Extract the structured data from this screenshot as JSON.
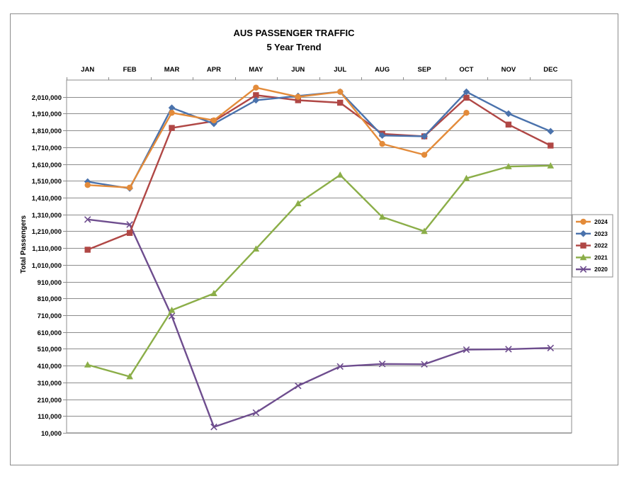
{
  "chart_data": {
    "type": "line",
    "title": "AUS PASSENGER TRAFFIC",
    "subtitle": "5 Year Trend",
    "xlabel": "",
    "ylabel": "Total Passengers",
    "x_axis_position": "top",
    "categories": [
      "JAN",
      "FEB",
      "MAR",
      "APR",
      "MAY",
      "JUN",
      "JUL",
      "AUG",
      "SEP",
      "OCT",
      "NOV",
      "DEC"
    ],
    "y_ticks": [
      "2,010,000",
      "1,910,000",
      "1,810,000",
      "1,710,000",
      "1,610,000",
      "1,510,000",
      "1,410,000",
      "1,310,000",
      "1,210,000",
      "1,110,000",
      "1,010,000",
      "910,000",
      "810,000",
      "710,000",
      "610,000",
      "510,000",
      "410,000",
      "310,000",
      "210,000",
      "110,000",
      "10,000"
    ],
    "ylim": [
      10000,
      2110000
    ],
    "grid": true,
    "legend_position": "right",
    "series": [
      {
        "name": "2024",
        "color": "#E38B3A",
        "marker": "circle",
        "values": [
          1485000,
          1470000,
          1915000,
          1870000,
          2065000,
          2010000,
          2040000,
          1730000,
          1665000,
          1915000,
          null,
          null
        ]
      },
      {
        "name": "2023",
        "color": "#4A72AC",
        "marker": "diamond",
        "values": [
          1505000,
          1465000,
          1945000,
          1850000,
          1990000,
          2015000,
          2040000,
          1780000,
          1775000,
          2040000,
          1910000,
          1805000
        ]
      },
      {
        "name": "2022",
        "color": "#B04745",
        "marker": "square",
        "values": [
          1100000,
          1200000,
          1825000,
          1865000,
          2020000,
          1990000,
          1975000,
          1790000,
          1775000,
          2005000,
          1845000,
          1720000
        ]
      },
      {
        "name": "2021",
        "color": "#8BAE48",
        "marker": "triangle",
        "values": [
          415000,
          345000,
          740000,
          840000,
          1105000,
          1375000,
          1545000,
          1295000,
          1210000,
          1525000,
          1595000,
          1600000
        ]
      },
      {
        "name": "2020",
        "color": "#6E4D8E",
        "marker": "x",
        "values": [
          1280000,
          1250000,
          705000,
          45000,
          130000,
          290000,
          405000,
          420000,
          418000,
          505000,
          508000,
          515000
        ]
      }
    ]
  }
}
